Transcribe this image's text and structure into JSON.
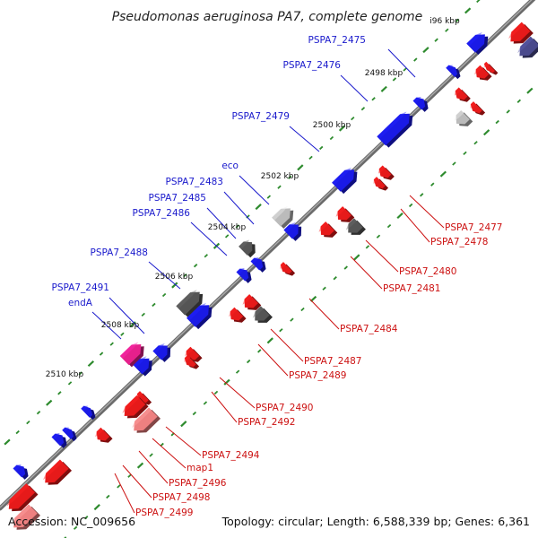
{
  "title": "Pseudomonas aeruginosa PA7, complete genome",
  "footer": {
    "accession": "Accession: NC_009656",
    "topology": "Topology: circular; Length: 6,588,339 bp; Genes: 6,361"
  },
  "colors": {
    "background": "#ffffff",
    "backbone": "#777777",
    "tick_mark": "#2e8b2e",
    "forward_label": "#1a1acc",
    "reverse_label": "#cc1111",
    "forward_feature": "#1a1ae6",
    "reverse_feature": "#e61a1a",
    "grey_feature": "#555555",
    "light_grey_feature": "#bbbbbb",
    "pink_feature": "#e6208c",
    "pale_red_feature": "#ee8080",
    "navy_feature": "#4a4a8c"
  },
  "kbp_markers": [
    "i96 kbp",
    "2498 kbp",
    "2500 kbp",
    "2502 kbp",
    "2504 kbp",
    "2506 kbp",
    "2508 kbp",
    "2510 kbp"
  ],
  "forward_genes": [
    "PSPA7_2475",
    "PSPA7_2476",
    "PSPA7_2479",
    "eco",
    "PSPA7_2483",
    "PSPA7_2485",
    "PSPA7_2486",
    "PSPA7_2488",
    "PSPA7_2491",
    "endA"
  ],
  "reverse_genes": [
    "PSPA7_2477",
    "PSPA7_2478",
    "PSPA7_2480",
    "PSPA7_2481",
    "PSPA7_2484",
    "PSPA7_2487",
    "PSPA7_2489",
    "PSPA7_2490",
    "PSPA7_2492",
    "PSPA7_2494",
    "map1",
    "PSPA7_2496",
    "PSPA7_2498",
    "PSPA7_2499"
  ]
}
